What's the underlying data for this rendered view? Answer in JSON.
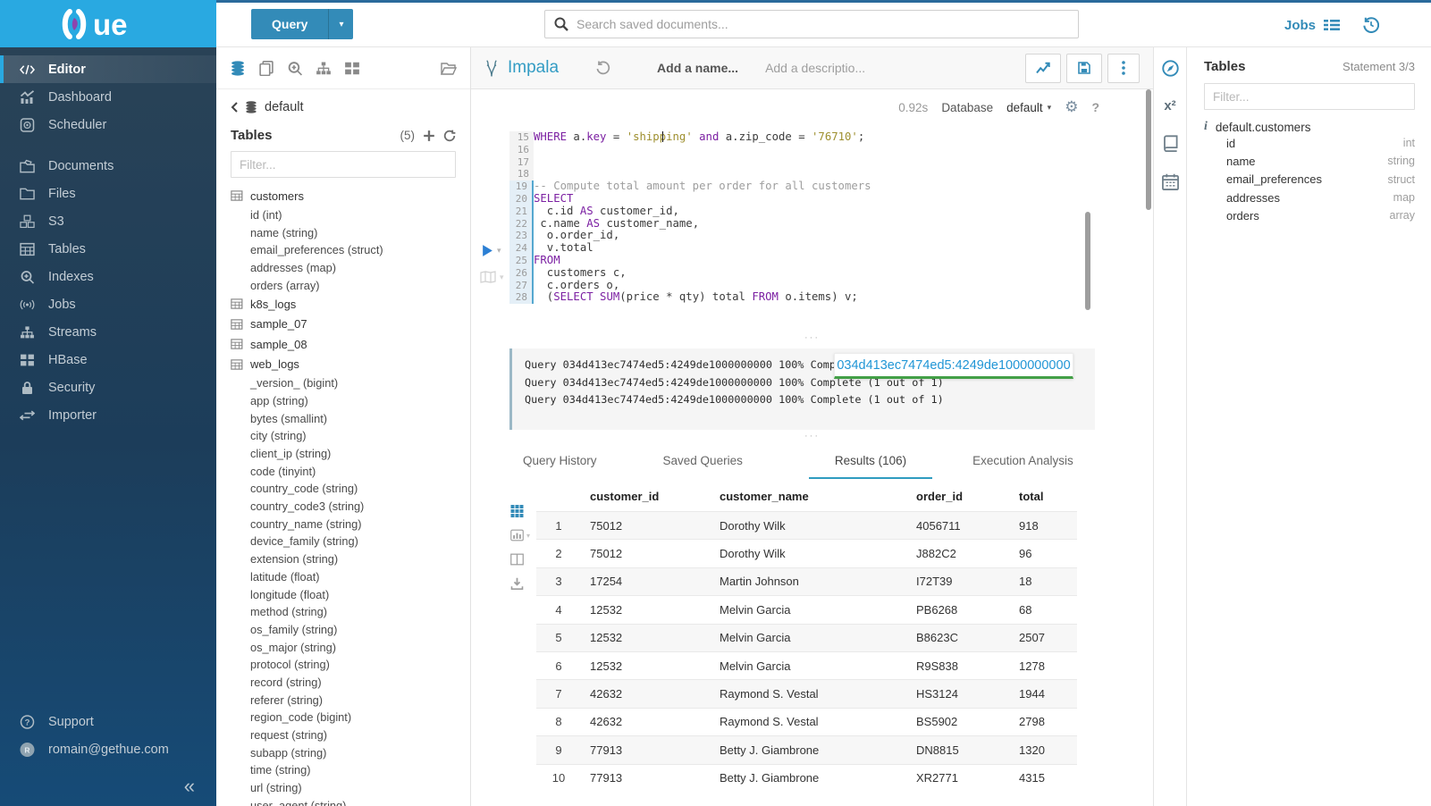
{
  "colors": {
    "brand": "#338bb8",
    "logo_bg": "#29a9e1",
    "popup_link": "#2196d6",
    "popup_underline": "#43a047",
    "keyword": "#7b1fa2",
    "string": "#9e8f2e"
  },
  "topbar": {
    "query_label": "Query",
    "search_placeholder": "Search saved documents...",
    "jobs_label": "Jobs"
  },
  "sidebar": {
    "logo_text": "Hue",
    "items": [
      {
        "label": "Editor",
        "icon": "code",
        "active": true
      },
      {
        "label": "Dashboard",
        "icon": "dashboard"
      },
      {
        "label": "Scheduler",
        "icon": "scheduler"
      },
      {
        "label": "Documents",
        "icon": "documents",
        "gap_before": true
      },
      {
        "label": "Files",
        "icon": "folder"
      },
      {
        "label": "S3",
        "icon": "cubes"
      },
      {
        "label": "Tables",
        "icon": "table"
      },
      {
        "label": "Indexes",
        "icon": "search-plus"
      },
      {
        "label": "Jobs",
        "icon": "broadcast"
      },
      {
        "label": "Streams",
        "icon": "sitemap"
      },
      {
        "label": "HBase",
        "icon": "blocks"
      },
      {
        "label": "Security",
        "icon": "lock"
      },
      {
        "label": "Importer",
        "icon": "exchange"
      }
    ],
    "footer": [
      {
        "label": "Support",
        "icon": "question"
      },
      {
        "label": "romain@gethue.com",
        "icon": "avatar"
      }
    ],
    "collapse_glyph": "«"
  },
  "left_panel": {
    "database": "default",
    "section_title": "Tables",
    "count": "(5)",
    "filter_placeholder": "Filter...",
    "tables": [
      {
        "name": "customers",
        "columns": [
          "id (int)",
          "name (string)",
          "email_preferences (struct)",
          "addresses (map)",
          "orders (array)"
        ]
      },
      {
        "name": "k8s_logs",
        "columns": []
      },
      {
        "name": "sample_07",
        "columns": []
      },
      {
        "name": "sample_08",
        "columns": []
      },
      {
        "name": "web_logs",
        "columns": [
          "_version_ (bigint)",
          "app (string)",
          "bytes (smallint)",
          "city (string)",
          "client_ip (string)",
          "code (tinyint)",
          "country_code (string)",
          "country_code3 (string)",
          "country_name (string)",
          "device_family (string)",
          "extension (string)",
          "latitude (float)",
          "longitude (float)",
          "method (string)",
          "os_family (string)",
          "os_major (string)",
          "protocol (string)",
          "record (string)",
          "referer (string)",
          "region_code (bigint)",
          "request (string)",
          "subapp (string)",
          "time (string)",
          "url (string)",
          "user_agent (string)"
        ]
      }
    ]
  },
  "editor": {
    "header": {
      "engine": "Impala",
      "name_placeholder": "Add a name...",
      "desc_placeholder": "Add a descriptio..."
    },
    "toolbar": {
      "exec_time": "0.92s",
      "database_label": "Database",
      "database_value": "default",
      "help_glyph": "?",
      "gear_glyph": "⚙",
      "caret_glyph": "▾"
    },
    "code": {
      "lines": [
        {
          "n": 15,
          "hl": false,
          "tok": [
            [
              "k",
              "WHERE"
            ],
            [
              "t",
              " a."
            ],
            [
              "k",
              "key"
            ],
            [
              "t",
              " = "
            ],
            [
              "s",
              "'shipping'"
            ],
            [
              "t",
              " "
            ],
            [
              "k",
              "and"
            ],
            [
              "t",
              " a.zip_code = "
            ],
            [
              "s",
              "'76710'"
            ],
            [
              "t",
              ";"
            ]
          ]
        },
        {
          "n": 16,
          "hl": false,
          "tok": []
        },
        {
          "n": 17,
          "hl": false,
          "tok": []
        },
        {
          "n": 18,
          "hl": false,
          "tok": []
        },
        {
          "n": 19,
          "hl": true,
          "tok": [
            [
              "c",
              "-- Compute total amount per order for all customers"
            ]
          ]
        },
        {
          "n": 20,
          "hl": true,
          "tok": [
            [
              "k",
              "SELECT"
            ]
          ]
        },
        {
          "n": 21,
          "hl": true,
          "tok": [
            [
              "t",
              "  c.id "
            ],
            [
              "k",
              "AS"
            ],
            [
              "t",
              " customer_id,"
            ]
          ]
        },
        {
          "n": 22,
          "hl": true,
          "tok": [
            [
              "t",
              " c.name "
            ],
            [
              "k",
              "AS"
            ],
            [
              "t",
              " customer_name,"
            ]
          ]
        },
        {
          "n": 23,
          "hl": true,
          "tok": [
            [
              "t",
              "  o.order_id,"
            ]
          ]
        },
        {
          "n": 24,
          "hl": true,
          "tok": [
            [
              "t",
              "  v.total"
            ]
          ]
        },
        {
          "n": 25,
          "hl": true,
          "tok": [
            [
              "k",
              "FROM"
            ]
          ]
        },
        {
          "n": 26,
          "hl": true,
          "tok": [
            [
              "t",
              "  customers c,"
            ]
          ]
        },
        {
          "n": 27,
          "hl": true,
          "tok": [
            [
              "t",
              "  c.orders o,"
            ]
          ]
        },
        {
          "n": 28,
          "hl": true,
          "tok": [
            [
              "t",
              "  ("
            ],
            [
              "k",
              "SELECT"
            ],
            [
              "t",
              " "
            ],
            [
              "k",
              "SUM"
            ],
            [
              "t",
              "(price * qty) total "
            ],
            [
              "k",
              "FROM"
            ],
            [
              "t",
              " o.items) v;"
            ]
          ]
        }
      ]
    },
    "logs": {
      "lines": [
        "Query 034d413ec7474ed5:4249de1000000000 100% Complete (1 out of 1)",
        "Query 034d413ec7474ed5:4249de1000000000 100% Complete (1 out of 1)",
        "Query 034d413ec7474ed5:4249de1000000000 100% Complete (1 out of 1)"
      ],
      "popup_id": "034d413ec7474ed5:4249de1000000000"
    },
    "splitter_glyph": "···",
    "tabs": [
      {
        "label": "Query History",
        "active": false
      },
      {
        "label": "Saved Queries",
        "active": false
      },
      {
        "label": "Results (106)",
        "active": true
      },
      {
        "label": "Execution Analysis",
        "active": false
      }
    ],
    "results": {
      "headers": [
        "",
        "customer_id",
        "customer_name",
        "order_id",
        "total"
      ],
      "rows": [
        [
          "1",
          "75012",
          "Dorothy Wilk",
          "4056711",
          "918"
        ],
        [
          "2",
          "75012",
          "Dorothy Wilk",
          "J882C2",
          "96"
        ],
        [
          "3",
          "17254",
          "Martin Johnson",
          "I72T39",
          "18"
        ],
        [
          "4",
          "12532",
          "Melvin Garcia",
          "PB6268",
          "68"
        ],
        [
          "5",
          "12532",
          "Melvin Garcia",
          "B8623C",
          "2507"
        ],
        [
          "6",
          "12532",
          "Melvin Garcia",
          "R9S838",
          "1278"
        ],
        [
          "7",
          "42632",
          "Raymond S. Vestal",
          "HS3124",
          "1944"
        ],
        [
          "8",
          "42632",
          "Raymond S. Vestal",
          "BS5902",
          "2798"
        ],
        [
          "9",
          "77913",
          "Betty J. Giambrone",
          "DN8815",
          "1320"
        ],
        [
          "10",
          "77913",
          "Betty J. Giambrone",
          "XR2771",
          "4315"
        ]
      ]
    }
  },
  "right_panel": {
    "title": "Tables",
    "statement": "Statement 3/3",
    "filter_placeholder": "Filter...",
    "info_glyph": "i",
    "x2_glyph": "x²",
    "table_label": "default.customers",
    "columns": [
      {
        "name": "id",
        "type": "int"
      },
      {
        "name": "name",
        "type": "string"
      },
      {
        "name": "email_preferences",
        "type": "struct"
      },
      {
        "name": "addresses",
        "type": "map"
      },
      {
        "name": "orders",
        "type": "array"
      }
    ]
  }
}
